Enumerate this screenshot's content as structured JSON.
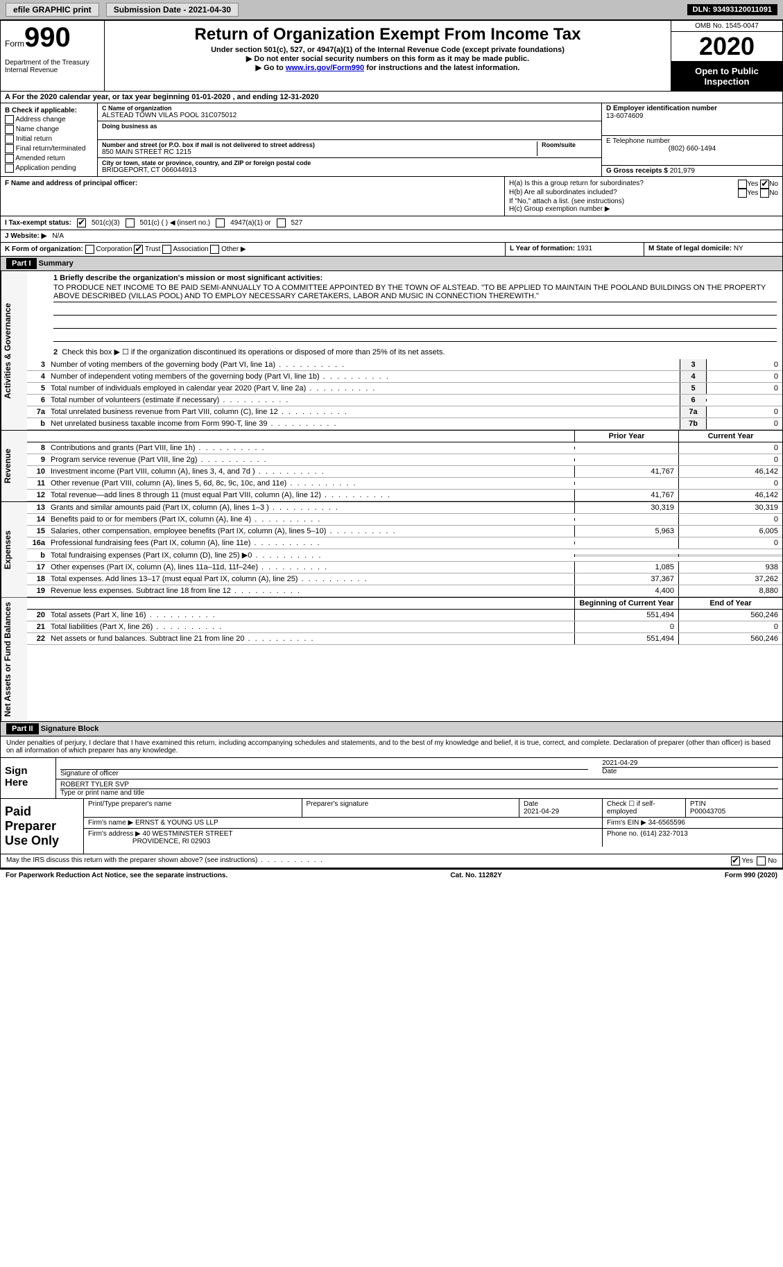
{
  "top": {
    "efile": "efile GRAPHIC print",
    "submission": "Submission Date - 2021-04-30",
    "dln": "DLN: 93493120011091"
  },
  "header": {
    "form_label": "Form",
    "form_number": "990",
    "dept1": "Department of the Treasury",
    "dept2": "Internal Revenue",
    "title": "Return of Organization Exempt From Income Tax",
    "subtitle": "Under section 501(c), 527, or 4947(a)(1) of the Internal Revenue Code (except private foundations)",
    "note1": "▶ Do not enter social security numbers on this form as it may be made public.",
    "note2_pre": "▶ Go to ",
    "note2_link": "www.irs.gov/Form990",
    "note2_post": " for instructions and the latest information.",
    "omb": "OMB No. 1545-0047",
    "year": "2020",
    "inspection": "Open to Public Inspection"
  },
  "row_a": "A For the 2020 calendar year, or tax year beginning 01-01-2020    , and ending 12-31-2020",
  "box_b": {
    "title": "B Check if applicable:",
    "items": [
      "Address change",
      "Name change",
      "Initial return",
      "Final return/terminated",
      "Amended return",
      "Application pending"
    ]
  },
  "box_c": {
    "name_lbl": "C Name of organization",
    "name": "ALSTEAD TOWN VILAS POOL 31C075012",
    "dba_lbl": "Doing business as",
    "dba": "",
    "addr_lbl": "Number and street (or P.O. box if mail is not delivered to street address)",
    "room_lbl": "Room/suite",
    "addr": "850 MAIN STREET RC 1215",
    "city_lbl": "City or town, state or province, country, and ZIP or foreign postal code",
    "city": "BRIDGEPORT, CT  066044913"
  },
  "box_d": {
    "ein_lbl": "D Employer identification number",
    "ein": "13-6074609",
    "tel_lbl": "E Telephone number",
    "tel": "(802) 660-1494",
    "gross_lbl": "G Gross receipts $",
    "gross": "201,979"
  },
  "box_f": {
    "lbl": "F Name and address of principal officer:",
    "val": ""
  },
  "box_h": {
    "ha": "H(a)  Is this a group return for subordinates?",
    "hb": "H(b)  Are all subordinates included?",
    "hb_note": "If \"No,\" attach a list. (see instructions)",
    "hc": "H(c)  Group exemption number ▶",
    "yes": "Yes",
    "no": "No"
  },
  "row_i": {
    "lbl": "I    Tax-exempt status:",
    "opts": [
      "501(c)(3)",
      "501(c) (  ) ◀ (insert no.)",
      "4947(a)(1) or",
      "527"
    ]
  },
  "row_j": {
    "lbl": "J   Website: ▶",
    "val": "N/A"
  },
  "row_k": {
    "lbl": "K Form of organization:",
    "opts": [
      "Corporation",
      "Trust",
      "Association",
      "Other ▶"
    ]
  },
  "row_l": {
    "lbl": "L Year of formation:",
    "val": "1931"
  },
  "row_m": {
    "lbl": "M State of legal domicile:",
    "val": "NY"
  },
  "part1": {
    "header": "Part I",
    "title": "Summary",
    "line1_lbl": "1   Briefly describe the organization's mission or most significant activities:",
    "line1_text": "TO PRODUCE NET INCOME TO BE PAID SEMI-ANNUALLY TO A COMMITTEE APPOINTED BY THE TOWN OF ALSTEAD. \"TO BE APPLIED TO MAINTAIN THE POOLAND BUILDINGS ON THE PROPERTY ABOVE DESCRIBED (VILLAS POOL) AND TO EMPLOY NECESSARY CARETAKERS, LABOR AND MUSIC IN CONNECTION THEREWITH.\"",
    "line2": "Check this box ▶ ☐  if the organization discontinued its operations or disposed of more than 25% of its net assets.",
    "tabs": {
      "gov": "Activities & Governance",
      "rev": "Revenue",
      "exp": "Expenses",
      "net": "Net Assets or Fund Balances"
    },
    "gov_lines": [
      {
        "n": "3",
        "d": "Number of voting members of the governing body (Part VI, line 1a)",
        "b": "3",
        "v": "0"
      },
      {
        "n": "4",
        "d": "Number of independent voting members of the governing body (Part VI, line 1b)",
        "b": "4",
        "v": "0"
      },
      {
        "n": "5",
        "d": "Total number of individuals employed in calendar year 2020 (Part V, line 2a)",
        "b": "5",
        "v": "0"
      },
      {
        "n": "6",
        "d": "Total number of volunteers (estimate if necessary)",
        "b": "6",
        "v": ""
      },
      {
        "n": "7a",
        "d": "Total unrelated business revenue from Part VIII, column (C), line 12",
        "b": "7a",
        "v": "0"
      },
      {
        "n": "b",
        "d": "Net unrelated business taxable income from Form 990-T, line 39",
        "b": "7b",
        "v": "0"
      }
    ],
    "col_headers": {
      "prior": "Prior Year",
      "current": "Current Year",
      "boc": "Beginning of Current Year",
      "eoy": "End of Year"
    },
    "rev_lines": [
      {
        "n": "8",
        "d": "Contributions and grants (Part VIII, line 1h)",
        "p": "",
        "c": "0"
      },
      {
        "n": "9",
        "d": "Program service revenue (Part VIII, line 2g)",
        "p": "",
        "c": "0"
      },
      {
        "n": "10",
        "d": "Investment income (Part VIII, column (A), lines 3, 4, and 7d )",
        "p": "41,767",
        "c": "46,142"
      },
      {
        "n": "11",
        "d": "Other revenue (Part VIII, column (A), lines 5, 6d, 8c, 9c, 10c, and 11e)",
        "p": "",
        "c": "0"
      },
      {
        "n": "12",
        "d": "Total revenue—add lines 8 through 11 (must equal Part VIII, column (A), line 12)",
        "p": "41,767",
        "c": "46,142"
      }
    ],
    "exp_lines": [
      {
        "n": "13",
        "d": "Grants and similar amounts paid (Part IX, column (A), lines 1–3 )",
        "p": "30,319",
        "c": "30,319"
      },
      {
        "n": "14",
        "d": "Benefits paid to or for members (Part IX, column (A), line 4)",
        "p": "",
        "c": "0"
      },
      {
        "n": "15",
        "d": "Salaries, other compensation, employee benefits (Part IX, column (A), lines 5–10)",
        "p": "5,963",
        "c": "6,005"
      },
      {
        "n": "16a",
        "d": "Professional fundraising fees (Part IX, column (A), line 11e)",
        "p": "",
        "c": "0"
      },
      {
        "n": "b",
        "d": "Total fundraising expenses (Part IX, column (D), line 25) ▶0",
        "p": "shade",
        "c": "shade"
      },
      {
        "n": "17",
        "d": "Other expenses (Part IX, column (A), lines 11a–11d, 11f–24e)",
        "p": "1,085",
        "c": "938"
      },
      {
        "n": "18",
        "d": "Total expenses. Add lines 13–17 (must equal Part IX, column (A), line 25)",
        "p": "37,367",
        "c": "37,262"
      },
      {
        "n": "19",
        "d": "Revenue less expenses. Subtract line 18 from line 12",
        "p": "4,400",
        "c": "8,880"
      }
    ],
    "net_lines": [
      {
        "n": "20",
        "d": "Total assets (Part X, line 16)",
        "p": "551,494",
        "c": "560,246"
      },
      {
        "n": "21",
        "d": "Total liabilities (Part X, line 26)",
        "p": "0",
        "c": "0"
      },
      {
        "n": "22",
        "d": "Net assets or fund balances. Subtract line 21 from line 20",
        "p": "551,494",
        "c": "560,246"
      }
    ]
  },
  "part2": {
    "header": "Part II",
    "title": "Signature Block",
    "decl": "Under penalties of perjury, I declare that I have examined this return, including accompanying schedules and statements, and to the best of my knowledge and belief, it is true, correct, and complete. Declaration of preparer (other than officer) is based on all information of which preparer has any knowledge.",
    "sign_here": "Sign Here",
    "sig_lbl": "Signature of officer",
    "date_lbl": "Date",
    "sig_date": "2021-04-29",
    "name_title": "ROBERT TYLER  SVP",
    "name_title_lbl": "Type or print name and title",
    "prep": "Paid Preparer Use Only",
    "prep_name_lbl": "Print/Type preparer's name",
    "prep_sig_lbl": "Preparer's signature",
    "prep_date_lbl": "Date",
    "prep_date": "2021-04-29",
    "prep_check_lbl": "Check ☐ if self-employed",
    "ptin_lbl": "PTIN",
    "ptin": "P00043705",
    "firm_name_lbl": "Firm's name    ▶",
    "firm_name": "ERNST & YOUNG US LLP",
    "firm_ein_lbl": "Firm's EIN ▶",
    "firm_ein": "34-6565596",
    "firm_addr_lbl": "Firm's address ▶",
    "firm_addr1": "40 WESTMINSTER STREET",
    "firm_addr2": "PROVIDENCE, RI  02903",
    "phone_lbl": "Phone no.",
    "phone": "(614) 232-7013",
    "discuss": "May the IRS discuss this return with the preparer shown above? (see instructions)",
    "yes": "Yes",
    "no": "No"
  },
  "footer": {
    "pra": "For Paperwork Reduction Act Notice, see the separate instructions.",
    "cat": "Cat. No. 11282Y",
    "form": "Form 990 (2020)"
  },
  "colors": {
    "topbar_bg": "#c0c0c0",
    "black": "#000000",
    "link": "#0000cc",
    "shade": "#d8d8d8"
  }
}
